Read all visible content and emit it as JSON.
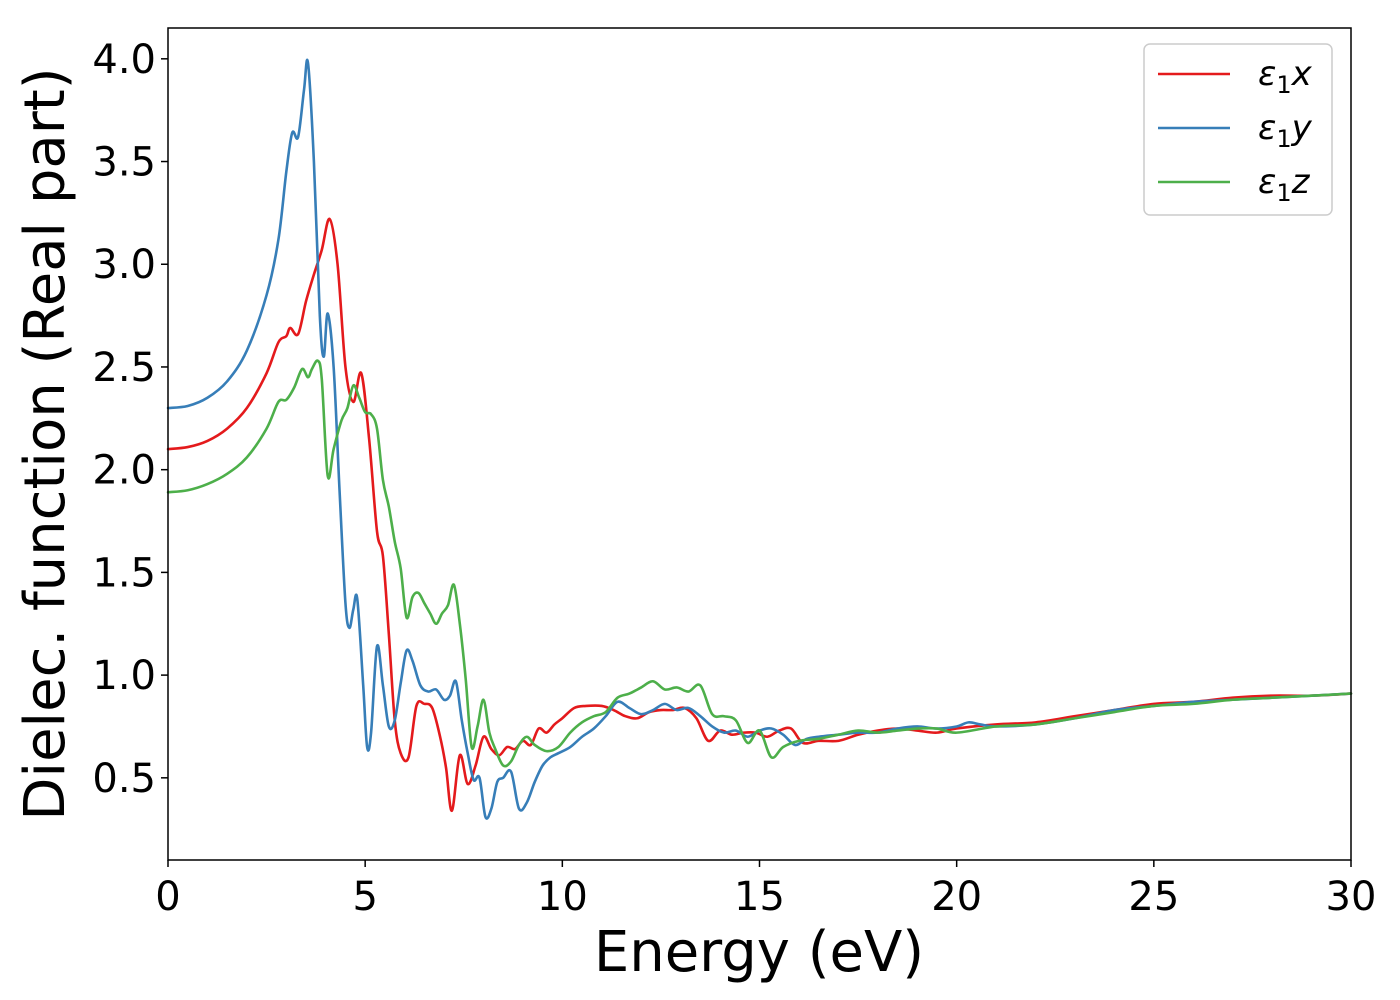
{
  "chart_data": {
    "type": "line",
    "title": "",
    "xlabel": "Energy (eV)",
    "ylabel": "Dielec. function (Real part)",
    "xlim": [
      0,
      30
    ],
    "ylim": [
      0.1,
      4.15
    ],
    "xticks": [
      0,
      5,
      10,
      15,
      20,
      25,
      30
    ],
    "xtick_labels": [
      "0",
      "5",
      "10",
      "15",
      "20",
      "25",
      "30"
    ],
    "yticks": [
      0.5,
      1.0,
      1.5,
      2.0,
      2.5,
      3.0,
      3.5,
      4.0
    ],
    "ytick_labels": [
      "0.5",
      "1.0",
      "1.5",
      "2.0",
      "2.5",
      "3.0",
      "3.5",
      "4.0"
    ],
    "grid": false,
    "legend_position": "top-right",
    "series": [
      {
        "name": "ε₁x",
        "legend_main": "ε",
        "legend_sub": "1",
        "legend_tail": "x",
        "color": "#e41a1c",
        "x": [
          0,
          0.5,
          1.0,
          1.5,
          2.0,
          2.5,
          2.8,
          3.0,
          3.1,
          3.3,
          3.5,
          3.7,
          3.9,
          4.1,
          4.3,
          4.5,
          4.7,
          4.9,
          5.1,
          5.3,
          5.45,
          5.6,
          5.75,
          5.9,
          6.1,
          6.3,
          6.5,
          6.7,
          6.9,
          7.05,
          7.2,
          7.4,
          7.6,
          7.8,
          8.0,
          8.2,
          8.4,
          8.6,
          8.8,
          9.0,
          9.2,
          9.4,
          9.6,
          9.8,
          10.0,
          10.3,
          10.6,
          11.0,
          11.3,
          11.6,
          11.9,
          12.2,
          12.5,
          12.8,
          13.1,
          13.4,
          13.7,
          14.0,
          14.3,
          14.6,
          14.9,
          15.2,
          15.5,
          15.8,
          16.1,
          16.5,
          17.0,
          17.5,
          18.0,
          18.5,
          19.0,
          19.5,
          20.0,
          21.0,
          22.0,
          23.0,
          24.0,
          25.0,
          26.0,
          27.0,
          28.0,
          29.0,
          30.0
        ],
        "y": [
          2.1,
          2.11,
          2.14,
          2.2,
          2.3,
          2.47,
          2.62,
          2.65,
          2.69,
          2.66,
          2.82,
          2.95,
          3.07,
          3.22,
          3.0,
          2.5,
          2.33,
          2.47,
          2.15,
          1.7,
          1.58,
          1.2,
          0.78,
          0.62,
          0.6,
          0.85,
          0.86,
          0.84,
          0.7,
          0.55,
          0.34,
          0.61,
          0.47,
          0.56,
          0.7,
          0.64,
          0.61,
          0.65,
          0.64,
          0.68,
          0.66,
          0.74,
          0.72,
          0.76,
          0.79,
          0.84,
          0.85,
          0.85,
          0.83,
          0.8,
          0.79,
          0.82,
          0.83,
          0.83,
          0.84,
          0.79,
          0.68,
          0.73,
          0.71,
          0.72,
          0.72,
          0.7,
          0.73,
          0.74,
          0.67,
          0.68,
          0.68,
          0.71,
          0.73,
          0.74,
          0.73,
          0.72,
          0.74,
          0.76,
          0.77,
          0.8,
          0.83,
          0.86,
          0.87,
          0.89,
          0.9,
          0.9,
          0.91
        ]
      },
      {
        "name": "ε₁y",
        "legend_main": "ε",
        "legend_sub": "1",
        "legend_tail": "y",
        "color": "#377eb8",
        "x": [
          0,
          0.5,
          1.0,
          1.5,
          2.0,
          2.5,
          2.8,
          3.0,
          3.15,
          3.3,
          3.45,
          3.55,
          3.7,
          3.85,
          3.95,
          4.05,
          4.2,
          4.35,
          4.5,
          4.6,
          4.7,
          4.8,
          4.95,
          5.05,
          5.15,
          5.3,
          5.45,
          5.6,
          5.75,
          5.9,
          6.05,
          6.2,
          6.4,
          6.6,
          6.8,
          7.0,
          7.15,
          7.3,
          7.45,
          7.6,
          7.75,
          7.9,
          8.05,
          8.2,
          8.35,
          8.5,
          8.7,
          8.9,
          9.1,
          9.3,
          9.5,
          9.7,
          9.9,
          10.2,
          10.5,
          10.8,
          11.1,
          11.4,
          11.7,
          12.0,
          12.3,
          12.6,
          12.9,
          13.2,
          13.5,
          13.8,
          14.1,
          14.4,
          14.7,
          15.0,
          15.3,
          15.6,
          15.9,
          16.2,
          16.5,
          17.0,
          17.5,
          18.0,
          18.5,
          19.0,
          19.5,
          20.0,
          20.3,
          20.6,
          21.0,
          22.0,
          23.0,
          24.0,
          25.0,
          26.0,
          27.0,
          28.0,
          29.0,
          30.0
        ],
        "y": [
          2.3,
          2.31,
          2.35,
          2.43,
          2.58,
          2.85,
          3.12,
          3.45,
          3.64,
          3.62,
          3.85,
          3.98,
          3.5,
          2.75,
          2.55,
          2.76,
          2.5,
          1.9,
          1.35,
          1.23,
          1.32,
          1.37,
          0.95,
          0.65,
          0.72,
          1.14,
          0.95,
          0.75,
          0.78,
          0.96,
          1.12,
          1.07,
          0.95,
          0.92,
          0.93,
          0.88,
          0.9,
          0.97,
          0.78,
          0.62,
          0.49,
          0.5,
          0.31,
          0.35,
          0.48,
          0.5,
          0.53,
          0.35,
          0.38,
          0.48,
          0.56,
          0.6,
          0.62,
          0.65,
          0.7,
          0.74,
          0.8,
          0.87,
          0.84,
          0.81,
          0.83,
          0.86,
          0.83,
          0.84,
          0.8,
          0.75,
          0.72,
          0.73,
          0.7,
          0.73,
          0.74,
          0.71,
          0.66,
          0.69,
          0.7,
          0.71,
          0.72,
          0.72,
          0.74,
          0.75,
          0.74,
          0.75,
          0.77,
          0.76,
          0.75,
          0.76,
          0.79,
          0.83,
          0.85,
          0.87,
          0.88,
          0.89,
          0.9,
          0.91
        ]
      },
      {
        "name": "ε₁z",
        "legend_main": "ε",
        "legend_sub": "1",
        "legend_tail": "z",
        "color": "#4daf4a",
        "x": [
          0,
          0.5,
          1.0,
          1.5,
          2.0,
          2.5,
          2.8,
          3.0,
          3.2,
          3.4,
          3.55,
          3.65,
          3.8,
          3.9,
          4.05,
          4.2,
          4.4,
          4.55,
          4.7,
          4.85,
          5.0,
          5.15,
          5.3,
          5.45,
          5.6,
          5.75,
          5.9,
          6.05,
          6.2,
          6.35,
          6.5,
          6.65,
          6.8,
          6.95,
          7.1,
          7.25,
          7.4,
          7.55,
          7.7,
          7.85,
          8.0,
          8.15,
          8.3,
          8.5,
          8.7,
          8.9,
          9.1,
          9.3,
          9.6,
          9.9,
          10.2,
          10.5,
          10.8,
          11.1,
          11.4,
          11.7,
          12.0,
          12.3,
          12.6,
          12.9,
          13.2,
          13.5,
          13.8,
          14.1,
          14.4,
          14.7,
          15.0,
          15.3,
          15.6,
          16.0,
          16.5,
          17.0,
          17.5,
          18.0,
          18.5,
          19.0,
          19.5,
          20.0,
          21.0,
          22.0,
          23.0,
          24.0,
          25.0,
          26.0,
          27.0,
          28.0,
          29.0,
          30.0
        ],
        "y": [
          1.89,
          1.9,
          1.93,
          1.98,
          2.06,
          2.2,
          2.33,
          2.34,
          2.4,
          2.49,
          2.45,
          2.49,
          2.53,
          2.44,
          1.97,
          2.1,
          2.24,
          2.3,
          2.41,
          2.35,
          2.28,
          2.27,
          2.2,
          1.95,
          1.82,
          1.65,
          1.52,
          1.28,
          1.38,
          1.4,
          1.35,
          1.3,
          1.25,
          1.3,
          1.34,
          1.44,
          1.25,
          0.98,
          0.65,
          0.75,
          0.88,
          0.72,
          0.64,
          0.56,
          0.58,
          0.66,
          0.7,
          0.66,
          0.63,
          0.65,
          0.72,
          0.77,
          0.8,
          0.82,
          0.89,
          0.91,
          0.94,
          0.97,
          0.93,
          0.94,
          0.92,
          0.95,
          0.81,
          0.8,
          0.78,
          0.67,
          0.73,
          0.6,
          0.65,
          0.68,
          0.69,
          0.71,
          0.73,
          0.72,
          0.73,
          0.74,
          0.74,
          0.72,
          0.75,
          0.76,
          0.79,
          0.82,
          0.85,
          0.86,
          0.88,
          0.89,
          0.9,
          0.91
        ]
      }
    ]
  }
}
